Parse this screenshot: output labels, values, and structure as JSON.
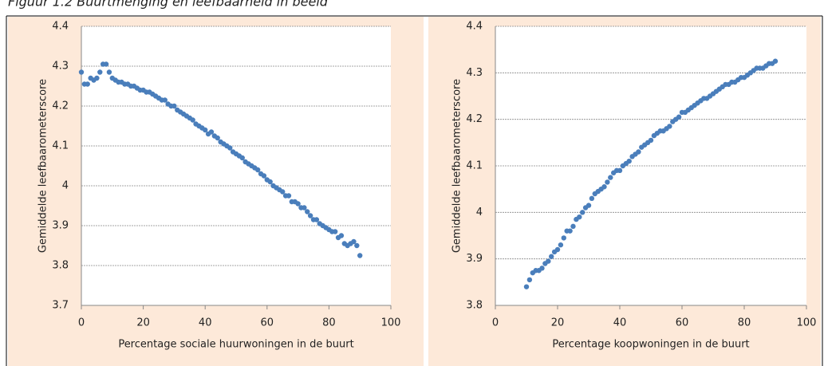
{
  "title": "Figuur 1.2 Buurtmenging en leefbaarheid in beeld",
  "chart_data": [
    {
      "type": "scatter",
      "color": "#4a7ebb",
      "grid": true,
      "xlabel": "Percentage sociale huurwoningen in de buurt",
      "ylabel": "Gemiddelde leefbaarometerscore",
      "xlim": [
        0,
        100
      ],
      "xticks": [
        0,
        20,
        40,
        60,
        80,
        100
      ],
      "ylim": [
        3.7,
        4.4
      ],
      "yticks": [
        3.7,
        3.8,
        3.9,
        4,
        4.1,
        4.2,
        4.3,
        4.4
      ],
      "x": [
        0,
        1,
        2,
        3,
        4,
        5,
        6,
        7,
        8,
        9,
        10,
        11,
        12,
        13,
        14,
        15,
        16,
        17,
        18,
        19,
        20,
        21,
        22,
        23,
        24,
        25,
        26,
        27,
        28,
        29,
        30,
        31,
        32,
        33,
        34,
        35,
        36,
        37,
        38,
        39,
        40,
        41,
        42,
        43,
        44,
        45,
        46,
        47,
        48,
        49,
        50,
        51,
        52,
        53,
        54,
        55,
        56,
        57,
        58,
        59,
        60,
        61,
        62,
        63,
        64,
        65,
        66,
        67,
        68,
        69,
        70,
        71,
        72,
        73,
        74,
        75,
        76,
        77,
        78,
        79,
        80,
        81,
        82,
        83,
        84,
        85,
        86,
        87,
        88,
        89,
        90
      ],
      "values": [
        4.285,
        4.255,
        4.255,
        4.27,
        4.265,
        4.27,
        4.285,
        4.305,
        4.305,
        4.285,
        4.27,
        4.265,
        4.26,
        4.26,
        4.255,
        4.255,
        4.25,
        4.25,
        4.245,
        4.24,
        4.24,
        4.235,
        4.235,
        4.23,
        4.225,
        4.22,
        4.215,
        4.215,
        4.205,
        4.2,
        4.2,
        4.19,
        4.185,
        4.18,
        4.175,
        4.17,
        4.165,
        4.155,
        4.15,
        4.145,
        4.14,
        4.13,
        4.135,
        4.125,
        4.12,
        4.11,
        4.105,
        4.1,
        4.095,
        4.085,
        4.08,
        4.075,
        4.07,
        4.06,
        4.055,
        4.05,
        4.045,
        4.04,
        4.03,
        4.025,
        4.015,
        4.01,
        4.0,
        3.995,
        3.99,
        3.985,
        3.975,
        3.975,
        3.96,
        3.96,
        3.955,
        3.945,
        3.945,
        3.935,
        3.925,
        3.915,
        3.915,
        3.905,
        3.9,
        3.895,
        3.89,
        3.885,
        3.885,
        3.87,
        3.875,
        3.855,
        3.85,
        3.855,
        3.86,
        3.85,
        3.825
      ]
    },
    {
      "type": "scatter",
      "color": "#4a7ebb",
      "grid": true,
      "xlabel": "Percentage koopwoningen in de buurt",
      "ylabel": "Gemiddelde leefbaarometerscore",
      "xlim": [
        0,
        100
      ],
      "xticks": [
        0,
        20,
        40,
        60,
        80,
        100
      ],
      "ylim": [
        3.8,
        4.4
      ],
      "yticks": [
        3.8,
        3.9,
        4,
        4.1,
        4.2,
        4.3,
        4.4
      ],
      "x": [
        10,
        11,
        12,
        13,
        14,
        15,
        16,
        17,
        18,
        19,
        20,
        21,
        22,
        23,
        24,
        25,
        26,
        27,
        28,
        29,
        30,
        31,
        32,
        33,
        34,
        35,
        36,
        37,
        38,
        39,
        40,
        41,
        42,
        43,
        44,
        45,
        46,
        47,
        48,
        49,
        50,
        51,
        52,
        53,
        54,
        55,
        56,
        57,
        58,
        59,
        60,
        61,
        62,
        63,
        64,
        65,
        66,
        67,
        68,
        69,
        70,
        71,
        72,
        73,
        74,
        75,
        76,
        77,
        78,
        79,
        80,
        81,
        82,
        83,
        84,
        85,
        86,
        87,
        88,
        89,
        90
      ],
      "values": [
        3.84,
        3.855,
        3.87,
        3.875,
        3.875,
        3.88,
        3.89,
        3.895,
        3.905,
        3.915,
        3.92,
        3.93,
        3.945,
        3.96,
        3.96,
        3.97,
        3.985,
        3.99,
        4.0,
        4.01,
        4.015,
        4.03,
        4.04,
        4.045,
        4.05,
        4.055,
        4.065,
        4.075,
        4.085,
        4.09,
        4.09,
        4.1,
        4.105,
        4.11,
        4.12,
        4.125,
        4.13,
        4.14,
        4.145,
        4.15,
        4.155,
        4.165,
        4.17,
        4.175,
        4.175,
        4.18,
        4.185,
        4.195,
        4.2,
        4.205,
        4.215,
        4.215,
        4.22,
        4.225,
        4.23,
        4.235,
        4.24,
        4.245,
        4.245,
        4.25,
        4.255,
        4.26,
        4.265,
        4.27,
        4.275,
        4.275,
        4.28,
        4.28,
        4.285,
        4.29,
        4.29,
        4.295,
        4.3,
        4.305,
        4.31,
        4.31,
        4.31,
        4.315,
        4.32,
        4.32,
        4.325
      ]
    }
  ]
}
